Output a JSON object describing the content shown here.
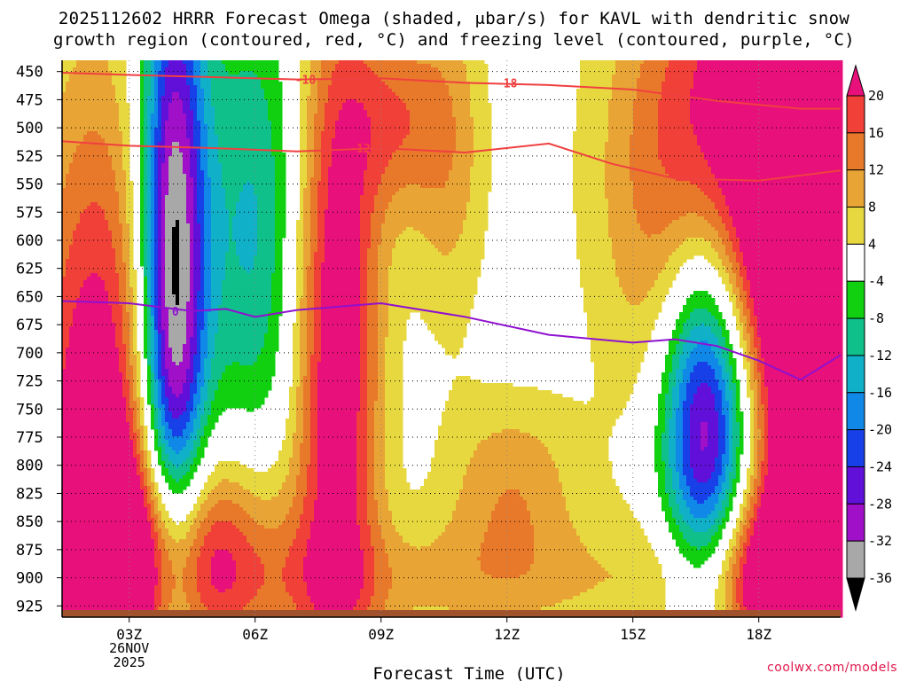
{
  "chart_data": {
    "type": "heatmap",
    "title_line1": "2025112602 HRRR Forecast Omega (shaded, μbar/s) for KAVL with dendritic snow",
    "title_line2": "growth region (contoured, red, °C) and freezing level (contoured, purple, °C)",
    "xlabel": "Forecast Time (UTC)",
    "x_ticks": [
      "03Z",
      "06Z",
      "09Z",
      "12Z",
      "15Z",
      "18Z"
    ],
    "x_tick_hours": [
      3,
      6,
      9,
      12,
      15,
      18
    ],
    "x_date_label": [
      "26NOV",
      "2025"
    ],
    "xlim_hours": [
      1.4,
      19.95
    ],
    "y_ticks": [
      450,
      475,
      500,
      525,
      550,
      575,
      600,
      625,
      650,
      675,
      700,
      725,
      750,
      775,
      800,
      825,
      850,
      875,
      900,
      925
    ],
    "ylim_hpa": [
      440,
      935
    ],
    "ylabel": "",
    "grid": true,
    "colorbar": {
      "labels": [
        "20",
        "16",
        "12",
        "8",
        "4",
        "-4",
        "-8",
        "-12",
        "-16",
        "-20",
        "-24",
        "-28",
        "-32",
        "-36"
      ],
      "colors": [
        "#e8107a",
        "#f04038",
        "#e8782a",
        "#e8a535",
        "#e8d840",
        "#ffffff",
        "#10d010",
        "#10c08a",
        "#10b0c8",
        "#1088e8",
        "#1840e8",
        "#6010d8",
        "#a010c8",
        "#a8a8a8",
        "#000000"
      ]
    },
    "contours": [
      {
        "label": "-18",
        "color": "#f04040",
        "series": [
          [
            1.4,
            451
          ],
          [
            3.0,
            453
          ],
          [
            5.0,
            455
          ],
          [
            7.0,
            457
          ],
          [
            9.0,
            456
          ],
          [
            11.0,
            460
          ],
          [
            13.0,
            462
          ],
          [
            15.0,
            466
          ],
          [
            17.0,
            476
          ],
          [
            19.0,
            483
          ],
          [
            19.95,
            483
          ]
        ]
      },
      {
        "label": "-12",
        "color": "#f04040",
        "series": [
          [
            1.4,
            512
          ],
          [
            3.0,
            516
          ],
          [
            5.0,
            518
          ],
          [
            7.0,
            521
          ],
          [
            9.0,
            518
          ],
          [
            11.0,
            522
          ],
          [
            13.0,
            514
          ],
          [
            14.5,
            532
          ],
          [
            16.0,
            545
          ],
          [
            18.0,
            547
          ],
          [
            19.95,
            538
          ]
        ]
      },
      {
        "label": "0",
        "color": "#9010d0",
        "series": [
          [
            1.4,
            654
          ],
          [
            3.0,
            656
          ],
          [
            4.5,
            663
          ],
          [
            5.3,
            661
          ],
          [
            6.0,
            668
          ],
          [
            7.0,
            662
          ],
          [
            9.0,
            656
          ],
          [
            11.0,
            668
          ],
          [
            13.0,
            684
          ],
          [
            15.0,
            691
          ],
          [
            16.0,
            688
          ],
          [
            17.0,
            694
          ],
          [
            18.0,
            707
          ],
          [
            19.0,
            724
          ],
          [
            19.95,
            702
          ]
        ]
      }
    ],
    "omega_fields": [
      {
        "name": "upward-core-03z",
        "peak": -40,
        "center": [
          4.05,
          640
        ],
        "sx": 0.55,
        "sy": 220
      },
      {
        "name": "upward-lobe-06z",
        "peak": -13,
        "center": [
          6.0,
          590
        ],
        "sx": 0.9,
        "sy": 150
      },
      {
        "name": "upward-core-16z",
        "peak": -40,
        "center": [
          16.75,
          765
        ],
        "sx": 0.75,
        "sy": 130
      },
      {
        "name": "downward-left",
        "peak": 28,
        "center": [
          2.2,
          840
        ],
        "sx": 1.1,
        "sy": 260
      },
      {
        "name": "downward-left-low",
        "peak": 24,
        "center": [
          4.3,
          880
        ],
        "sx": 1.6,
        "sy": 70
      },
      {
        "name": "downward-08z",
        "peak": 26,
        "center": [
          7.95,
          690
        ],
        "sx": 0.75,
        "sy": 230
      },
      {
        "name": "downward-09z-top",
        "peak": 12,
        "center": [
          9.3,
          490
        ],
        "sx": 0.8,
        "sy": 60
      },
      {
        "name": "downward-10z-top",
        "peak": 10,
        "center": [
          10.6,
          520
        ],
        "sx": 0.7,
        "sy": 120
      },
      {
        "name": "downward-12z-mid",
        "peak": 11,
        "center": [
          12.1,
          820
        ],
        "sx": 1.2,
        "sy": 60
      },
      {
        "name": "downward-right-top",
        "peak": 30,
        "center": [
          17.6,
          540
        ],
        "sx": 2.0,
        "sy": 160
      },
      {
        "name": "downward-right-edge",
        "peak": 30,
        "center": [
          19.4,
          760
        ],
        "sx": 0.9,
        "sy": 260
      },
      {
        "name": "downward-right-low",
        "peak": 24,
        "center": [
          18.0,
          900
        ],
        "sx": 1.5,
        "sy": 60
      },
      {
        "name": "downward-bottom",
        "peak": 8,
        "center": [
          10.5,
          905
        ],
        "sx": 4.5,
        "sy": 40
      }
    ]
  },
  "credit": "coolwx.com/models"
}
